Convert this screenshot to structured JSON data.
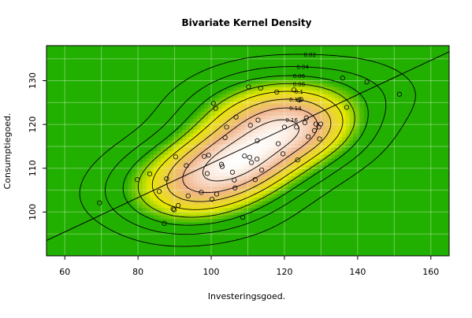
{
  "chart_data": {
    "type": "bivariate-kernel-density",
    "title": "Bivariate Kernel Density",
    "xlabel": "Investeringsgoed.",
    "ylabel": "Consumptiegoed.",
    "xlim": [
      55,
      165
    ],
    "ylim": [
      90,
      138
    ],
    "xticks": [
      60,
      80,
      100,
      120,
      140,
      160
    ],
    "yticks": [
      100,
      110,
      120,
      130
    ],
    "grid": true,
    "contour_levels": [
      0.02,
      0.04,
      0.06,
      0.08,
      0.1,
      0.12,
      0.14,
      0.16
    ],
    "contour_labels": [
      "0.02",
      "0.04",
      "0.06",
      "0.08",
      "0.1",
      "0.12",
      "0.14",
      "0.16"
    ],
    "regression_line": {
      "x": [
        55,
        165
      ],
      "y": [
        93.5,
        136.6
      ]
    },
    "colors": {
      "low": "#22b000",
      "mid": "#e8e800",
      "high": "#f0b48a",
      "peak": "#ffffff"
    },
    "points": [
      [
        69.5,
        102.1
      ],
      [
        79.8,
        107.4
      ],
      [
        83.2,
        108.7
      ],
      [
        85.8,
        104.7
      ],
      [
        87.2,
        97.4
      ],
      [
        87.8,
        107.6
      ],
      [
        89.6,
        100.7
      ],
      [
        89.9,
        100.5
      ],
      [
        90.3,
        112.6
      ],
      [
        91.0,
        101.5
      ],
      [
        93.2,
        110.6
      ],
      [
        93.7,
        103.7
      ],
      [
        97.3,
        104.5
      ],
      [
        98.1,
        112.7
      ],
      [
        98.9,
        108.8
      ],
      [
        99.3,
        113.0
      ],
      [
        100.2,
        102.9
      ],
      [
        100.6,
        124.8
      ],
      [
        101.2,
        123.7
      ],
      [
        101.5,
        104.1
      ],
      [
        102.8,
        110.9
      ],
      [
        103.0,
        110.4
      ],
      [
        103.8,
        117.0
      ],
      [
        104.2,
        119.4
      ],
      [
        105.8,
        109.1
      ],
      [
        106.3,
        107.3
      ],
      [
        106.5,
        105.5
      ],
      [
        106.8,
        121.7
      ],
      [
        108.6,
        98.8
      ],
      [
        109.1,
        112.8
      ],
      [
        110.2,
        128.6
      ],
      [
        110.5,
        112.5
      ],
      [
        110.7,
        119.8
      ],
      [
        111.0,
        111.3
      ],
      [
        112.0,
        107.4
      ],
      [
        112.5,
        112.1
      ],
      [
        112.6,
        116.3
      ],
      [
        112.8,
        121.0
      ],
      [
        113.5,
        128.3
      ],
      [
        113.8,
        109.6
      ],
      [
        117.9,
        127.4
      ],
      [
        118.3,
        115.6
      ],
      [
        119.6,
        113.3
      ],
      [
        120.0,
        119.4
      ],
      [
        122.6,
        127.9
      ],
      [
        123.3,
        119.4
      ],
      [
        123.6,
        111.9
      ],
      [
        124.0,
        125.6
      ],
      [
        124.5,
        125.7
      ],
      [
        125.6,
        120.4
      ],
      [
        126.0,
        121.5
      ],
      [
        126.5,
        117.2
      ],
      [
        128.2,
        118.6
      ],
      [
        128.6,
        120.1
      ],
      [
        129.4,
        119.4
      ],
      [
        129.6,
        116.7
      ],
      [
        129.9,
        120.1
      ],
      [
        135.9,
        130.6
      ],
      [
        137.0,
        123.9
      ],
      [
        142.5,
        129.7
      ],
      [
        151.4,
        126.9
      ]
    ]
  }
}
